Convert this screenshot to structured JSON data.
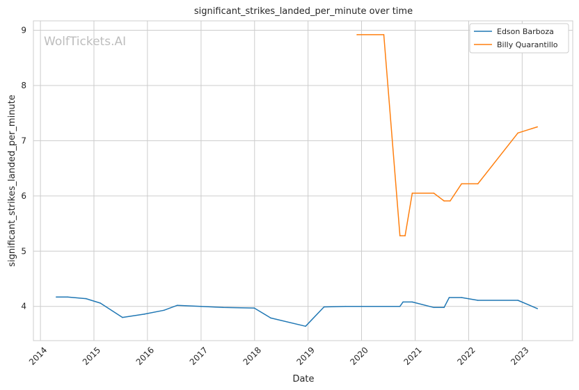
{
  "chart_data": {
    "type": "line",
    "title": "significant_strikes_landed_per_minute over time",
    "xlabel": "Date",
    "ylabel": "significant_strikes_landed_per_minute",
    "x_ticks": [
      "2014",
      "2015",
      "2016",
      "2017",
      "2018",
      "2019",
      "2020",
      "2021",
      "2022",
      "2023"
    ],
    "y_ticks": [
      4,
      5,
      6,
      7,
      8,
      9
    ],
    "xlim": [
      "2013-11-14",
      "2023-12-12"
    ],
    "ylim": [
      3.38,
      9.17
    ],
    "grid": true,
    "legend_position": "top-right",
    "watermark": "WolfTickets.AI",
    "series": [
      {
        "name": "Edson Barboza",
        "color": "#1f77b4",
        "points": [
          [
            "2014-04-19",
            4.17
          ],
          [
            "2014-07-05",
            4.17
          ],
          [
            "2014-11-08",
            4.14
          ],
          [
            "2015-02-14",
            4.06
          ],
          [
            "2015-07-15",
            3.8
          ],
          [
            "2015-12-10",
            3.86
          ],
          [
            "2016-04-23",
            3.93
          ],
          [
            "2016-07-23",
            4.02
          ],
          [
            "2017-01-01",
            4.0
          ],
          [
            "2017-06-01",
            3.98
          ],
          [
            "2017-12-30",
            3.97
          ],
          [
            "2018-04-21",
            3.79
          ],
          [
            "2018-12-15",
            3.64
          ],
          [
            "2019-04-20",
            3.99
          ],
          [
            "2019-09-14",
            4.0
          ],
          [
            "2020-01-01",
            4.0
          ],
          [
            "2020-09-19",
            4.0
          ],
          [
            "2020-10-10",
            4.08
          ],
          [
            "2020-12-12",
            4.08
          ],
          [
            "2021-05-08",
            3.98
          ],
          [
            "2021-07-17",
            3.98
          ],
          [
            "2021-08-21",
            4.16
          ],
          [
            "2021-11-13",
            4.16
          ],
          [
            "2022-03-05",
            4.11
          ],
          [
            "2022-12-03",
            4.11
          ],
          [
            "2023-04-15",
            3.96
          ]
        ]
      },
      {
        "name": "Billy Quarantillo",
        "color": "#ff7f0e",
        "points": [
          [
            "2019-12-01",
            8.92
          ],
          [
            "2020-06-01",
            8.92
          ],
          [
            "2020-09-19",
            5.28
          ],
          [
            "2020-10-24",
            5.28
          ],
          [
            "2020-12-12",
            6.05
          ],
          [
            "2021-05-08",
            6.05
          ],
          [
            "2021-07-17",
            5.91
          ],
          [
            "2021-08-28",
            5.91
          ],
          [
            "2021-11-13",
            6.22
          ],
          [
            "2022-03-05",
            6.22
          ],
          [
            "2022-12-03",
            7.14
          ],
          [
            "2023-04-15",
            7.25
          ]
        ]
      }
    ]
  }
}
